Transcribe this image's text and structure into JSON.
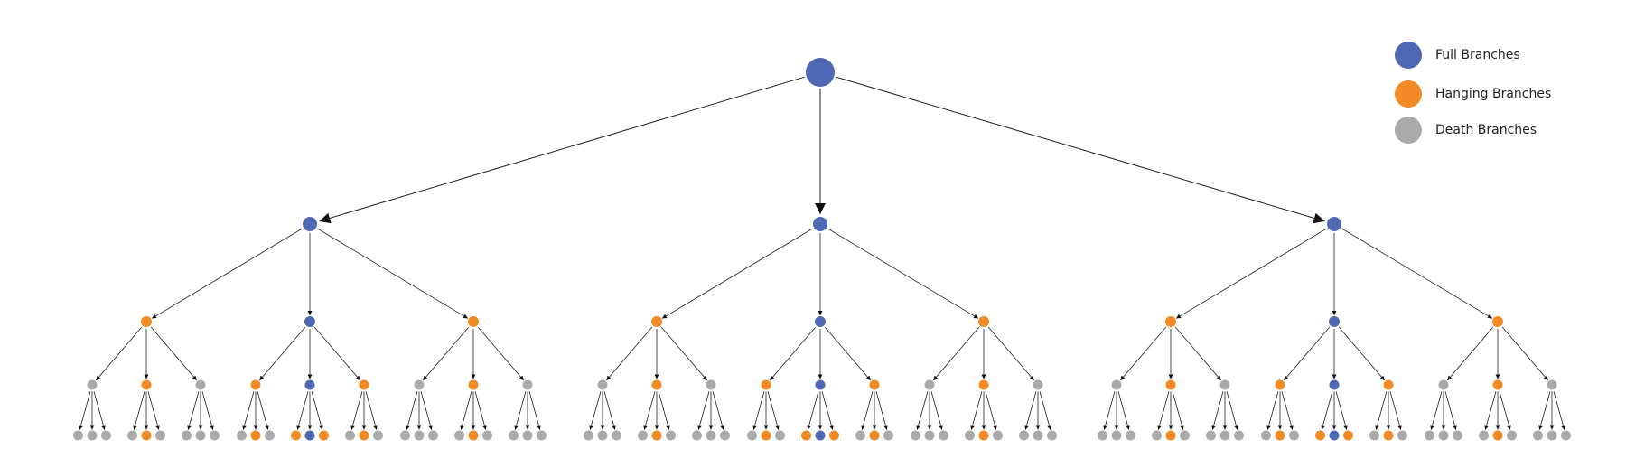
{
  "legend": {
    "items": [
      {
        "label": "Full Branches"
      },
      {
        "label": "Hanging Branches"
      },
      {
        "label": "Death Branches"
      }
    ]
  }
}
